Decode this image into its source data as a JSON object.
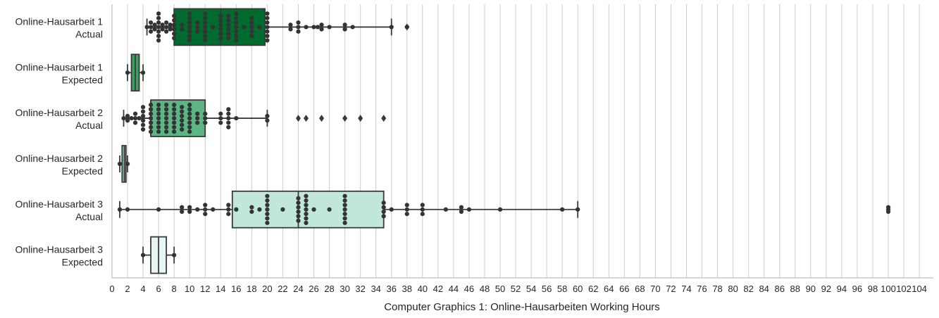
{
  "chart_data": {
    "type": "boxplot",
    "orientation": "horizontal",
    "xlabel": "Computer Graphics 1: Online-Hausarbeiten Working Hours",
    "xlim": [
      0,
      105
    ],
    "xticks": [
      0,
      2,
      4,
      6,
      8,
      10,
      12,
      14,
      16,
      18,
      20,
      22,
      24,
      26,
      28,
      30,
      32,
      34,
      36,
      38,
      40,
      42,
      44,
      46,
      48,
      50,
      52,
      54,
      56,
      58,
      60,
      62,
      64,
      66,
      68,
      70,
      72,
      74,
      76,
      78,
      80,
      82,
      84,
      86,
      88,
      90,
      92,
      94,
      96,
      98,
      100,
      102,
      104
    ],
    "grid": "vertical",
    "overlay": "swarm",
    "series": [
      {
        "label_line1": "Online-Hausarbeit 1",
        "label_line2": "Actual",
        "color": "#006b2f",
        "q1": 8,
        "median": 14,
        "q3": 19.7,
        "whisker_low": 4.5,
        "whisker_high": 36,
        "outliers": [
          38
        ],
        "points": [
          4.5,
          5,
          5,
          5,
          5.5,
          5.5,
          6,
          6,
          6,
          6,
          6,
          6,
          6,
          6,
          6,
          6,
          6,
          6,
          6.5,
          6.5,
          7,
          7,
          7,
          7.5,
          7.5,
          8,
          8,
          8,
          8,
          8,
          8,
          9,
          9,
          10,
          10,
          10,
          10,
          10,
          10,
          10,
          10,
          10,
          10,
          11,
          11,
          11,
          12,
          12,
          12,
          12,
          12,
          12,
          12,
          13,
          14,
          14,
          14,
          14,
          14,
          14,
          15,
          15,
          15,
          15,
          15,
          15,
          16,
          16,
          16,
          16,
          16,
          16,
          16,
          16,
          17,
          18,
          18,
          18,
          18,
          18,
          19,
          20,
          20,
          20,
          20,
          20,
          20,
          20,
          20,
          20,
          20,
          23,
          23,
          24,
          24,
          24,
          25,
          26,
          26.5,
          27,
          27,
          28,
          30,
          30,
          31,
          36,
          38
        ]
      },
      {
        "label_line1": "Online-Hausarbeit 1",
        "label_line2": "Expected",
        "color": "#3d9e64",
        "q1": 2.5,
        "median": 3,
        "q3": 3.5,
        "whisker_low": 2,
        "whisker_high": 4,
        "outliers": [],
        "points": [
          2,
          4
        ]
      },
      {
        "label_line1": "Online-Hausarbeit 2",
        "label_line2": "Actual",
        "color": "#5cb585",
        "q1": 5,
        "median": 5,
        "q3": 12,
        "whisker_low": 1.5,
        "whisker_high": 20,
        "outliers": [
          24,
          25,
          27,
          30,
          32,
          35
        ],
        "points": [
          1.5,
          2,
          2,
          2.5,
          3,
          3,
          3,
          3.5,
          4,
          4,
          4,
          4,
          4,
          4,
          5,
          5,
          5,
          5,
          5,
          5,
          5,
          5,
          6,
          6,
          6,
          6,
          6,
          6,
          6,
          6,
          7,
          7,
          7,
          7,
          7,
          7,
          7,
          8,
          8,
          8,
          8,
          8,
          8,
          8,
          8,
          8,
          9,
          9,
          9,
          9,
          9,
          9,
          10,
          10,
          10,
          10,
          10,
          10,
          10,
          11,
          11,
          11,
          12,
          12,
          12,
          14,
          14,
          14,
          15,
          15,
          15,
          15,
          15,
          16,
          20,
          20
        ]
      },
      {
        "label_line1": "Online-Hausarbeit 2",
        "label_line2": "Expected",
        "color": "#84cc9f",
        "q1": 1.3,
        "median": 1.6,
        "q3": 1.8,
        "whisker_low": 1,
        "whisker_high": 2,
        "outliers": [],
        "points": [
          1,
          2
        ]
      },
      {
        "label_line1": "Online-Hausarbeit 3",
        "label_line2": "Actual",
        "color": "#c1e6dc",
        "q1": 15.5,
        "median": 24,
        "q3": 35,
        "whisker_low": 1,
        "whisker_high": 60,
        "outliers": [
          100
        ],
        "points": [
          1,
          2,
          6,
          9,
          9,
          10,
          10,
          11,
          12,
          12,
          12,
          13,
          15,
          15,
          15,
          16,
          18,
          18,
          19,
          20,
          20,
          20,
          20,
          20,
          20,
          20,
          20,
          22,
          24,
          24,
          24,
          24,
          24,
          24,
          25,
          25,
          25,
          25,
          25,
          25,
          25,
          26,
          28,
          30,
          30,
          30,
          30,
          30,
          30,
          30,
          30,
          30,
          35,
          35,
          35,
          35,
          36,
          38,
          38,
          38,
          40,
          40,
          40,
          43,
          45,
          45,
          46,
          50,
          58,
          60,
          100,
          100
        ]
      },
      {
        "label_line1": "Online-Hausarbeit 3",
        "label_line2": "Expected",
        "color": "#e7f6f5",
        "q1": 5,
        "median": 6,
        "q3": 7,
        "whisker_low": 4,
        "whisker_high": 8,
        "outliers": [],
        "points": [
          4,
          8
        ]
      }
    ]
  }
}
